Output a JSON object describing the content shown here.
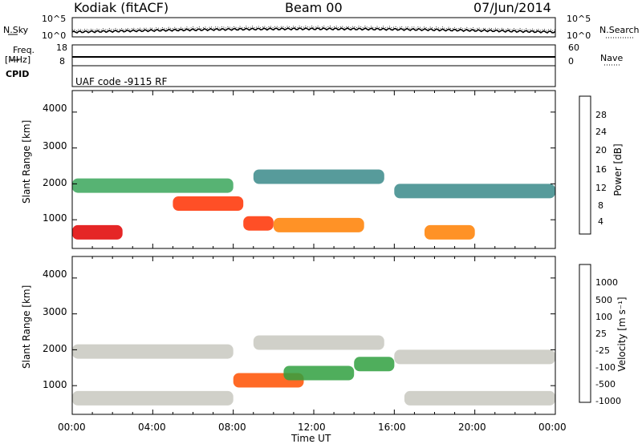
{
  "header": {
    "site": "Kodiak (fitACF)",
    "beam": "Beam 00",
    "date": "07/Jun/2014"
  },
  "top_panels": {
    "nsky_label": "N.Sky",
    "nsearch_label": "N.Search",
    "freq_label": "Freq.",
    "freq_unit": "[MHz]",
    "nave_label": "Nave",
    "cpid_label": "CPID",
    "cpid_text": "UAF code -9115 RF",
    "noise_ticks_left": [
      "10^5",
      "10^0"
    ],
    "noise_ticks_right": [
      "10^5",
      "10^0"
    ],
    "freq_ticks": [
      "18",
      "8"
    ],
    "nave_ticks": [
      "60",
      "0"
    ]
  },
  "colors": {
    "power_scale": [
      "#0000ff",
      "#2a5fbf",
      "#3a8a8a",
      "#3aa65a",
      "#9acd32",
      "#f0c000",
      "#ff7f00",
      "#ff3000",
      "#e00000"
    ],
    "velocity_scale": [
      "#e00000",
      "#ff5000",
      "#ff9000",
      "#f0a000",
      "#c8c8c0",
      "#c8c8c0",
      "#50d030",
      "#30a040",
      "#3060a0",
      "#2020d0"
    ]
  },
  "chart_data": [
    {
      "type": "heatmap",
      "name": "power",
      "xlabel": "",
      "ylabel": "Slant Range [km]",
      "xlim": [
        "00:00",
        "00:00"
      ],
      "ylim": [
        200,
        4600
      ],
      "yticks": [
        "1000",
        "2000",
        "3000",
        "4000"
      ],
      "colorbar": {
        "label": "Power [dB]",
        "ticks": [
          "4",
          "8",
          "12",
          "16",
          "20",
          "24",
          "28"
        ],
        "range": [
          0,
          30
        ]
      },
      "bands": [
        {
          "t_start": 0.0,
          "t_end": 2.5,
          "range_km": 650,
          "value": 28
        },
        {
          "t_start": 0.0,
          "t_end": 8.0,
          "range_km": 1950,
          "value": 12
        },
        {
          "t_start": 5.0,
          "t_end": 8.5,
          "range_km": 1450,
          "value": 24
        },
        {
          "t_start": 8.5,
          "t_end": 10.0,
          "range_km": 900,
          "value": 26
        },
        {
          "t_start": 10.0,
          "t_end": 14.5,
          "range_km": 850,
          "value": 22
        },
        {
          "t_start": 9.0,
          "t_end": 15.5,
          "range_km": 2200,
          "value": 8
        },
        {
          "t_start": 16.0,
          "t_end": 24.0,
          "range_km": 1800,
          "value": 8
        },
        {
          "t_start": 17.5,
          "t_end": 20.0,
          "range_km": 650,
          "value": 20
        }
      ]
    },
    {
      "type": "heatmap",
      "name": "velocity",
      "xlabel": "Time UT",
      "ylabel": "Slant Range [km]",
      "xticks": [
        "00:00",
        "04:00",
        "08:00",
        "12:00",
        "16:00",
        "20:00",
        "00:00"
      ],
      "ylim": [
        200,
        4600
      ],
      "yticks": [
        "1000",
        "2000",
        "3000",
        "4000"
      ],
      "colorbar": {
        "label": "Velocity [m s⁻¹]",
        "ticks": [
          "1000",
          "500",
          "100",
          "25",
          "-25",
          "-100",
          "-500",
          "-1000"
        ],
        "range": [
          -1000,
          1000
        ]
      },
      "bands": [
        {
          "t_start": 0.0,
          "t_end": 8.0,
          "range_km": 1950,
          "value": 0
        },
        {
          "t_start": 0.0,
          "t_end": 8.0,
          "range_km": 650,
          "value": 0
        },
        {
          "t_start": 8.0,
          "t_end": 11.5,
          "range_km": 1150,
          "value": -200
        },
        {
          "t_start": 10.5,
          "t_end": 14.0,
          "range_km": 1350,
          "value": 120
        },
        {
          "t_start": 14.0,
          "t_end": 16.0,
          "range_km": 1600,
          "value": 150
        },
        {
          "t_start": 9.0,
          "t_end": 15.5,
          "range_km": 2200,
          "value": 0
        },
        {
          "t_start": 16.0,
          "t_end": 24.0,
          "range_km": 1800,
          "value": 0
        },
        {
          "t_start": 16.5,
          "t_end": 24.0,
          "range_km": 650,
          "value": 0
        }
      ]
    }
  ]
}
